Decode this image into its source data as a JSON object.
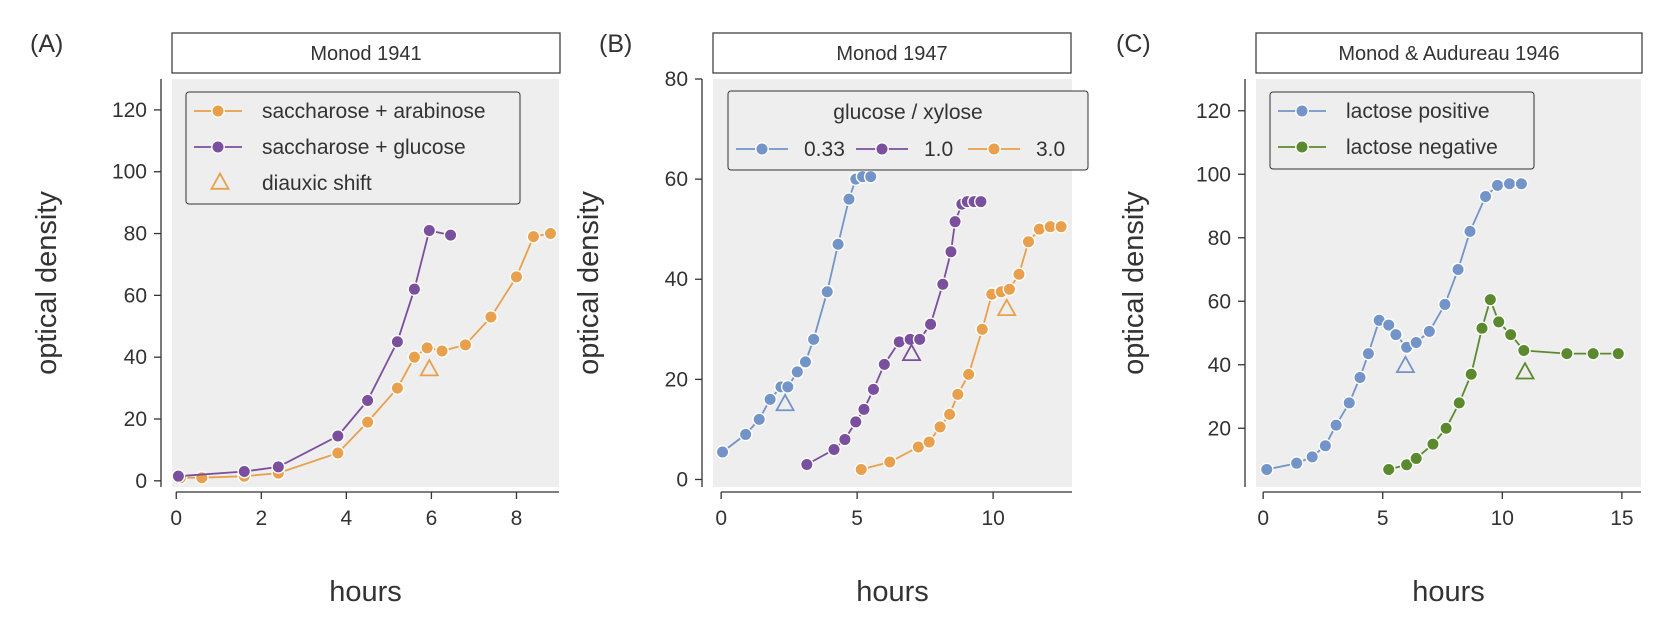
{
  "colors": {
    "orange": "#e8a04c",
    "purple": "#7a4f9e",
    "blue": "#7394c9",
    "green": "#5b8a2e",
    "panel_bg": "#eeeeee",
    "axis": "#333333"
  },
  "chart_data": [
    {
      "type": "line",
      "panel_label": "(A)",
      "title": "Monod 1941",
      "xlabel": "hours",
      "ylabel": "optical density",
      "xlim": [
        -0.1,
        9
      ],
      "ylim": [
        -2,
        130
      ],
      "xticks": [
        0,
        2,
        4,
        6,
        8
      ],
      "yticks": [
        0,
        20,
        40,
        60,
        80,
        100,
        120
      ],
      "legend": {
        "position": "top-left",
        "title": "",
        "layout": "vertical",
        "entries": [
          {
            "label": "saccharose + arabinose",
            "color": "#e8a04c",
            "marker": "circle-line"
          },
          {
            "label": "saccharose + glucose",
            "color": "#7a4f9e",
            "marker": "circle-line"
          },
          {
            "label": "diauxic shift",
            "color": "#e8a04c",
            "marker": "triangle"
          }
        ]
      },
      "series": [
        {
          "name": "saccharose + arabinose",
          "color": "#e8a04c",
          "x": [
            0.1,
            0.6,
            1.6,
            2.4,
            3.8,
            4.5,
            5.2,
            5.6,
            5.9,
            6.25,
            6.8,
            7.4,
            8.0,
            8.4,
            8.8
          ],
          "y": [
            1,
            1,
            1.5,
            2.5,
            9,
            19,
            30,
            40,
            43,
            42,
            44,
            53,
            66,
            79,
            80
          ]
        },
        {
          "name": "saccharose + glucose",
          "color": "#7a4f9e",
          "x": [
            0.05,
            1.6,
            2.4,
            3.8,
            4.5,
            5.2,
            5.6,
            5.95,
            6.45
          ],
          "y": [
            1.5,
            3,
            4.5,
            14.5,
            26,
            45,
            62,
            81,
            79.5
          ]
        }
      ],
      "shifts": [
        {
          "color": "#e8a04c",
          "x": 5.95,
          "y": 36
        }
      ]
    },
    {
      "type": "line",
      "panel_label": "(B)",
      "title": "Monod 1947",
      "xlabel": "hours",
      "ylabel": "optical density",
      "xlim": [
        -0.3,
        12.9
      ],
      "ylim": [
        -1.5,
        80
      ],
      "xticks": [
        0,
        5,
        10
      ],
      "yticks": [
        0,
        20,
        40,
        60,
        80
      ],
      "legend": {
        "position": "top-left",
        "title": "glucose / xylose",
        "layout": "horizontal",
        "entries": [
          {
            "label": "0.33",
            "color": "#7394c9",
            "marker": "circle-line"
          },
          {
            "label": "1.0",
            "color": "#7a4f9e",
            "marker": "circle-line"
          },
          {
            "label": "3.0",
            "color": "#e8a04c",
            "marker": "circle-line"
          }
        ]
      },
      "series": [
        {
          "name": "0.33",
          "color": "#7394c9",
          "x": [
            0.05,
            0.9,
            1.4,
            1.8,
            2.2,
            2.45,
            2.8,
            3.1,
            3.4,
            3.9,
            4.3,
            4.7,
            4.95,
            5.2,
            5.5
          ],
          "y": [
            5.5,
            9,
            12,
            16,
            18.5,
            18.5,
            21.5,
            23.5,
            28,
            37.5,
            47,
            56,
            60,
            60.5,
            60.5
          ]
        },
        {
          "name": "1.0",
          "color": "#7a4f9e",
          "x": [
            3.15,
            4.15,
            4.55,
            4.95,
            5.25,
            5.6,
            6.0,
            6.55,
            6.95,
            7.3,
            7.7,
            8.15,
            8.45,
            8.6,
            8.85,
            9.05,
            9.3,
            9.55
          ],
          "y": [
            3,
            6,
            8,
            11.5,
            14,
            18,
            23,
            27.5,
            28,
            28,
            31,
            39,
            45.5,
            51.5,
            55,
            55.5,
            55.5,
            55.5
          ]
        },
        {
          "name": "3.0",
          "color": "#e8a04c",
          "x": [
            5.15,
            6.2,
            7.25,
            7.65,
            8.05,
            8.4,
            8.7,
            9.1,
            9.6,
            9.95,
            10.3,
            10.6,
            10.95,
            11.3,
            11.7,
            12.1,
            12.5
          ],
          "y": [
            2,
            3.5,
            6.5,
            7.5,
            10.5,
            13,
            17,
            21,
            30,
            37,
            37.5,
            38,
            41,
            47.5,
            50,
            50.5,
            50.5
          ]
        }
      ],
      "shifts": [
        {
          "color": "#7394c9",
          "x": 2.35,
          "y": 15
        },
        {
          "color": "#7a4f9e",
          "x": 7.0,
          "y": 25
        },
        {
          "color": "#e8a04c",
          "x": 10.5,
          "y": 34
        }
      ]
    },
    {
      "type": "line",
      "panel_label": "(C)",
      "title": "Monod & Audureau 1946",
      "xlabel": "hours",
      "ylabel": "optical density",
      "xlim": [
        -0.3,
        15.8
      ],
      "ylim": [
        1.5,
        130
      ],
      "xticks": [
        0,
        5,
        10,
        15
      ],
      "yticks": [
        20,
        40,
        60,
        80,
        100,
        120
      ],
      "legend": {
        "position": "top-left",
        "title": "",
        "layout": "vertical",
        "entries": [
          {
            "label": "lactose positive",
            "color": "#7394c9",
            "marker": "circle-line"
          },
          {
            "label": "lactose negative",
            "color": "#5b8a2e",
            "marker": "circle-line"
          }
        ]
      },
      "series": [
        {
          "name": "lactose positive",
          "color": "#7394c9",
          "x": [
            0.15,
            1.4,
            2.05,
            2.6,
            3.05,
            3.6,
            4.05,
            4.4,
            4.85,
            5.25,
            5.55,
            6.0,
            6.4,
            6.95,
            7.6,
            8.15,
            8.65,
            9.3,
            9.8,
            10.3,
            10.8
          ],
          "y": [
            7,
            9,
            11,
            14.5,
            21,
            28,
            36,
            43.5,
            54,
            52.5,
            49.5,
            45.5,
            47,
            50.5,
            59,
            70,
            82,
            93,
            96.5,
            97,
            97
          ]
        },
        {
          "name": "lactose negative",
          "color": "#5b8a2e",
          "x": [
            5.25,
            6.0,
            6.4,
            7.1,
            7.65,
            8.2,
            8.7,
            9.15,
            9.5,
            9.85,
            10.35,
            10.9,
            12.7,
            13.8,
            14.85
          ],
          "y": [
            7,
            8.5,
            10.5,
            15,
            20,
            28,
            37,
            51.5,
            60.5,
            53.5,
            49.5,
            44.5,
            43.5,
            43.5,
            43.5
          ]
        }
      ],
      "shifts": [
        {
          "color": "#7394c9",
          "x": 5.95,
          "y": 39.5
        },
        {
          "color": "#5b8a2e",
          "x": 10.95,
          "y": 37.5
        }
      ]
    }
  ]
}
